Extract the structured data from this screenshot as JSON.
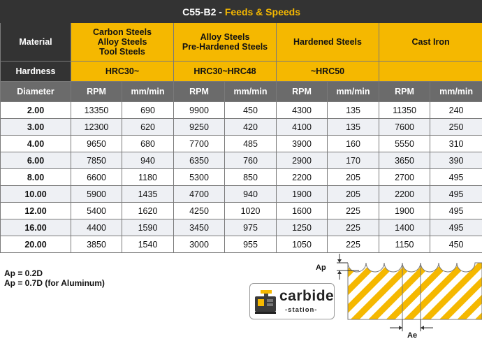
{
  "title": {
    "code": "C55-B2",
    "separator": " - ",
    "subtitle": "Feeds & Speeds"
  },
  "material_label": "Material",
  "hardness_label": "Hardness",
  "diameter_label": "Diameter",
  "rpm_label": "RPM",
  "feed_label": "mm/min",
  "materials": [
    {
      "lines": [
        "Carbon Steels",
        "Alloy Steels",
        "Tool Steels"
      ],
      "hardness": "HRC30~"
    },
    {
      "lines": [
        "Alloy Steels",
        "Pre-Hardened Steels"
      ],
      "hardness": "HRC30~HRC48"
    },
    {
      "lines": [
        "Hardened Steels"
      ],
      "hardness": "~HRC50"
    },
    {
      "lines": [
        "Cast Iron"
      ],
      "hardness": ""
    }
  ],
  "rows": [
    {
      "d": "2.00",
      "v": [
        "13350",
        "690",
        "9900",
        "450",
        "4300",
        "135",
        "11350",
        "240"
      ]
    },
    {
      "d": "3.00",
      "v": [
        "12300",
        "620",
        "9250",
        "420",
        "4100",
        "135",
        "7600",
        "250"
      ]
    },
    {
      "d": "4.00",
      "v": [
        "9650",
        "680",
        "7700",
        "485",
        "3900",
        "160",
        "5550",
        "310"
      ]
    },
    {
      "d": "6.00",
      "v": [
        "7850",
        "940",
        "6350",
        "760",
        "2900",
        "170",
        "3650",
        "390"
      ]
    },
    {
      "d": "8.00",
      "v": [
        "6600",
        "1180",
        "5300",
        "850",
        "2200",
        "205",
        "2700",
        "495"
      ]
    },
    {
      "d": "10.00",
      "v": [
        "5900",
        "1435",
        "4700",
        "940",
        "1900",
        "205",
        "2200",
        "495"
      ]
    },
    {
      "d": "12.00",
      "v": [
        "5400",
        "1620",
        "4250",
        "1020",
        "1600",
        "225",
        "1900",
        "495"
      ]
    },
    {
      "d": "16.00",
      "v": [
        "4400",
        "1590",
        "3450",
        "975",
        "1250",
        "225",
        "1400",
        "495"
      ]
    },
    {
      "d": "20.00",
      "v": [
        "3850",
        "1540",
        "3000",
        "955",
        "1050",
        "225",
        "1150",
        "450"
      ]
    }
  ],
  "notes": [
    "Ap = 0.2D",
    "Ap = 0.7D (for Aluminum)"
  ],
  "logo": {
    "name": "carbide",
    "tagline": "-station-"
  },
  "diagram": {
    "ap_label": "Ap",
    "ae_label": "Ae"
  },
  "colors": {
    "accent": "#f5b800",
    "dark": "#333333",
    "header_gray": "#6b6b6b",
    "stripe": "#eef0f4"
  }
}
